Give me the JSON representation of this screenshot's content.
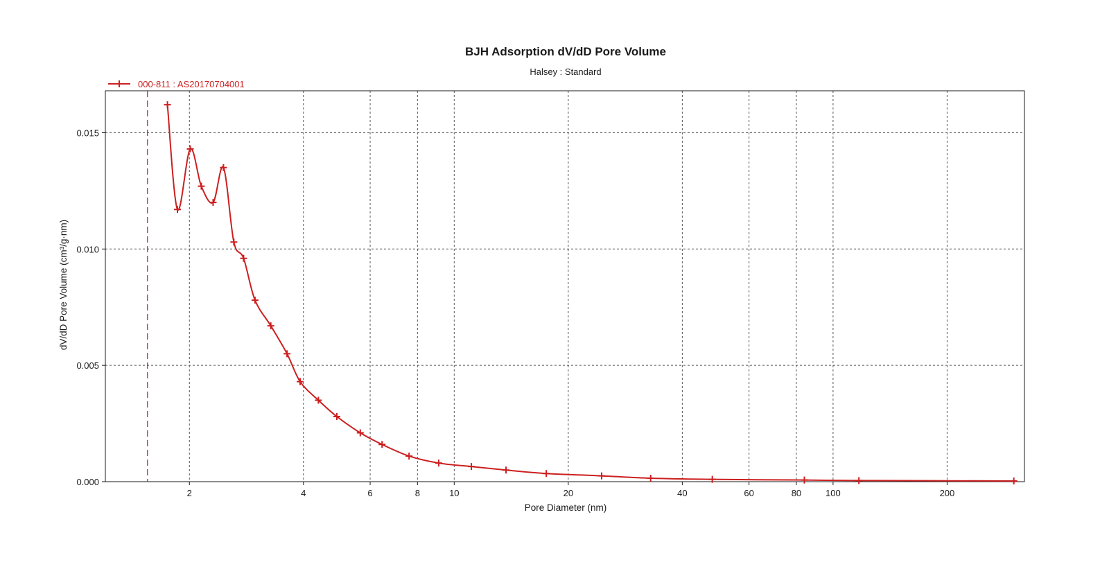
{
  "chart_data": {
    "type": "line",
    "title": "BJH Adsorption dV/dD Pore Volume",
    "subtitle": "Halsey : Standard",
    "xlabel": "Pore Diameter (nm)",
    "ylabel": "dV/dD Pore Volume (cm³/g·nm)",
    "x_scale": "log",
    "xlim": [
      1.2,
      320
    ],
    "ylim": [
      0,
      0.0168
    ],
    "x_ticks": [
      {
        "value": 2,
        "label": "2"
      },
      {
        "value": 4,
        "label": "4"
      },
      {
        "value": 6,
        "label": "6"
      },
      {
        "value": 8,
        "label": "8"
      },
      {
        "value": 10,
        "label": "10"
      },
      {
        "value": 20,
        "label": "20"
      },
      {
        "value": 40,
        "label": "40"
      },
      {
        "value": 60,
        "label": "60"
      },
      {
        "value": 80,
        "label": "80"
      },
      {
        "value": 100,
        "label": "100"
      },
      {
        "value": 200,
        "label": "200"
      }
    ],
    "y_ticks": [
      {
        "value": 0.0,
        "label": "0.000"
      },
      {
        "value": 0.005,
        "label": "0.005"
      },
      {
        "value": 0.01,
        "label": "0.010"
      },
      {
        "value": 0.015,
        "label": "0.015"
      }
    ],
    "grid": true,
    "legend_position": "top-left",
    "reference_line_x": 1.55,
    "series": [
      {
        "name": "000-811 : AS20170704001",
        "color": "#cc1f1f",
        "marker": "plus",
        "x": [
          1.75,
          1.86,
          2.01,
          2.15,
          2.31,
          2.46,
          2.62,
          2.78,
          2.98,
          3.28,
          3.62,
          3.92,
          4.38,
          4.9,
          5.65,
          6.45,
          7.6,
          9.1,
          11.1,
          13.7,
          17.5,
          24.5,
          33.0,
          48.0,
          84.0,
          117.0,
          300.0
        ],
        "y": [
          0.0162,
          0.0117,
          0.0143,
          0.0127,
          0.012,
          0.0135,
          0.0103,
          0.0096,
          0.0078,
          0.0067,
          0.0055,
          0.0043,
          0.0035,
          0.0028,
          0.0021,
          0.0016,
          0.0011,
          0.0008,
          0.00065,
          0.0005,
          0.00035,
          0.00025,
          0.00015,
          0.0001,
          7e-05,
          5e-05,
          3e-05
        ]
      }
    ]
  }
}
